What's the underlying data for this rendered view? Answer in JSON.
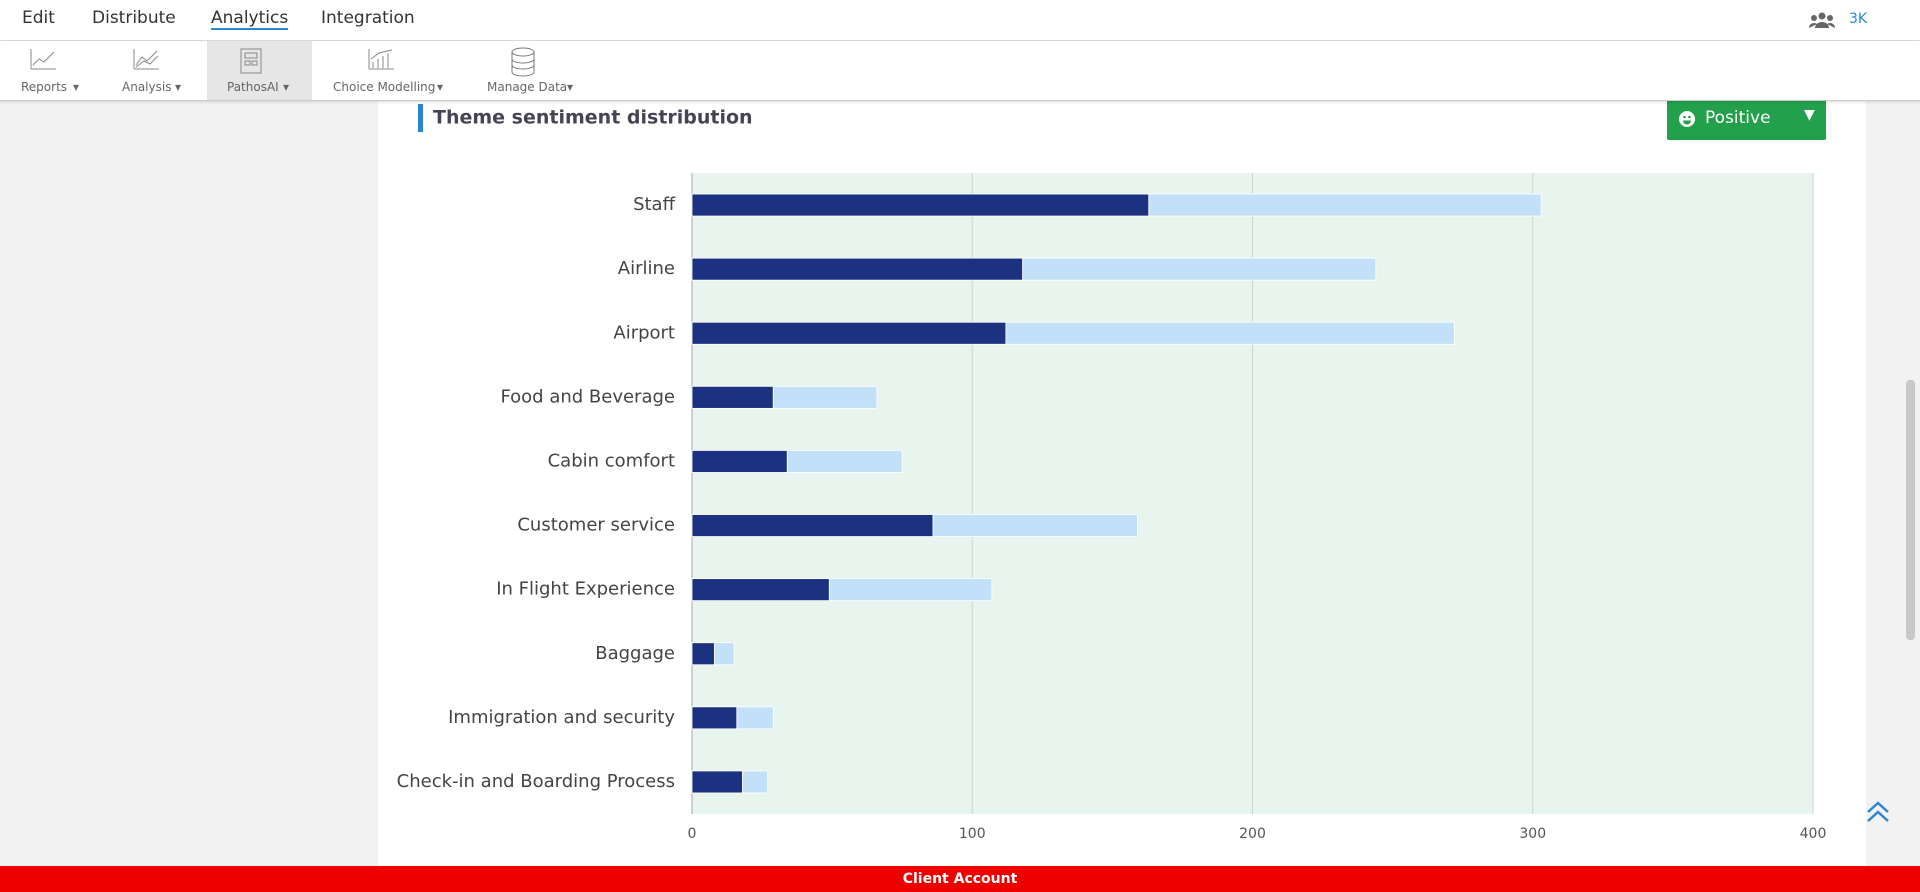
{
  "nav": {
    "menu": [
      "Edit",
      "Distribute",
      "Analytics",
      "Integration"
    ],
    "user_count": "3K"
  },
  "toolbar": [
    "Reports",
    "Analysis",
    "PathosAI",
    "Choice Modelling",
    "Manage Data"
  ],
  "filter_button": "Positive",
  "footer": "Client Account",
  "chart_data": {
    "type": "bar",
    "orientation": "horizontal",
    "stacked": true,
    "title": "Theme sentiment distribution",
    "categories": [
      "Staff",
      "Airline",
      "Airport",
      "Food and Beverage",
      "Cabin comfort",
      "Customer service",
      "In Flight Experience",
      "Baggage",
      "Immigration and security",
      "Check-in and Boarding Process"
    ],
    "series": [
      {
        "color": "#1c3280",
        "values": [
          163,
          118,
          112,
          29,
          34,
          86,
          49,
          8,
          16,
          18
        ]
      },
      {
        "color": "#c3e0f9",
        "values": [
          140,
          126,
          160,
          37,
          41,
          73,
          58,
          7,
          13,
          9
        ]
      }
    ],
    "xlim": [
      0,
      400
    ],
    "xticks": [
      0,
      100,
      200,
      300,
      400
    ],
    "grid": true,
    "plot_background": "#e8f5ee"
  }
}
